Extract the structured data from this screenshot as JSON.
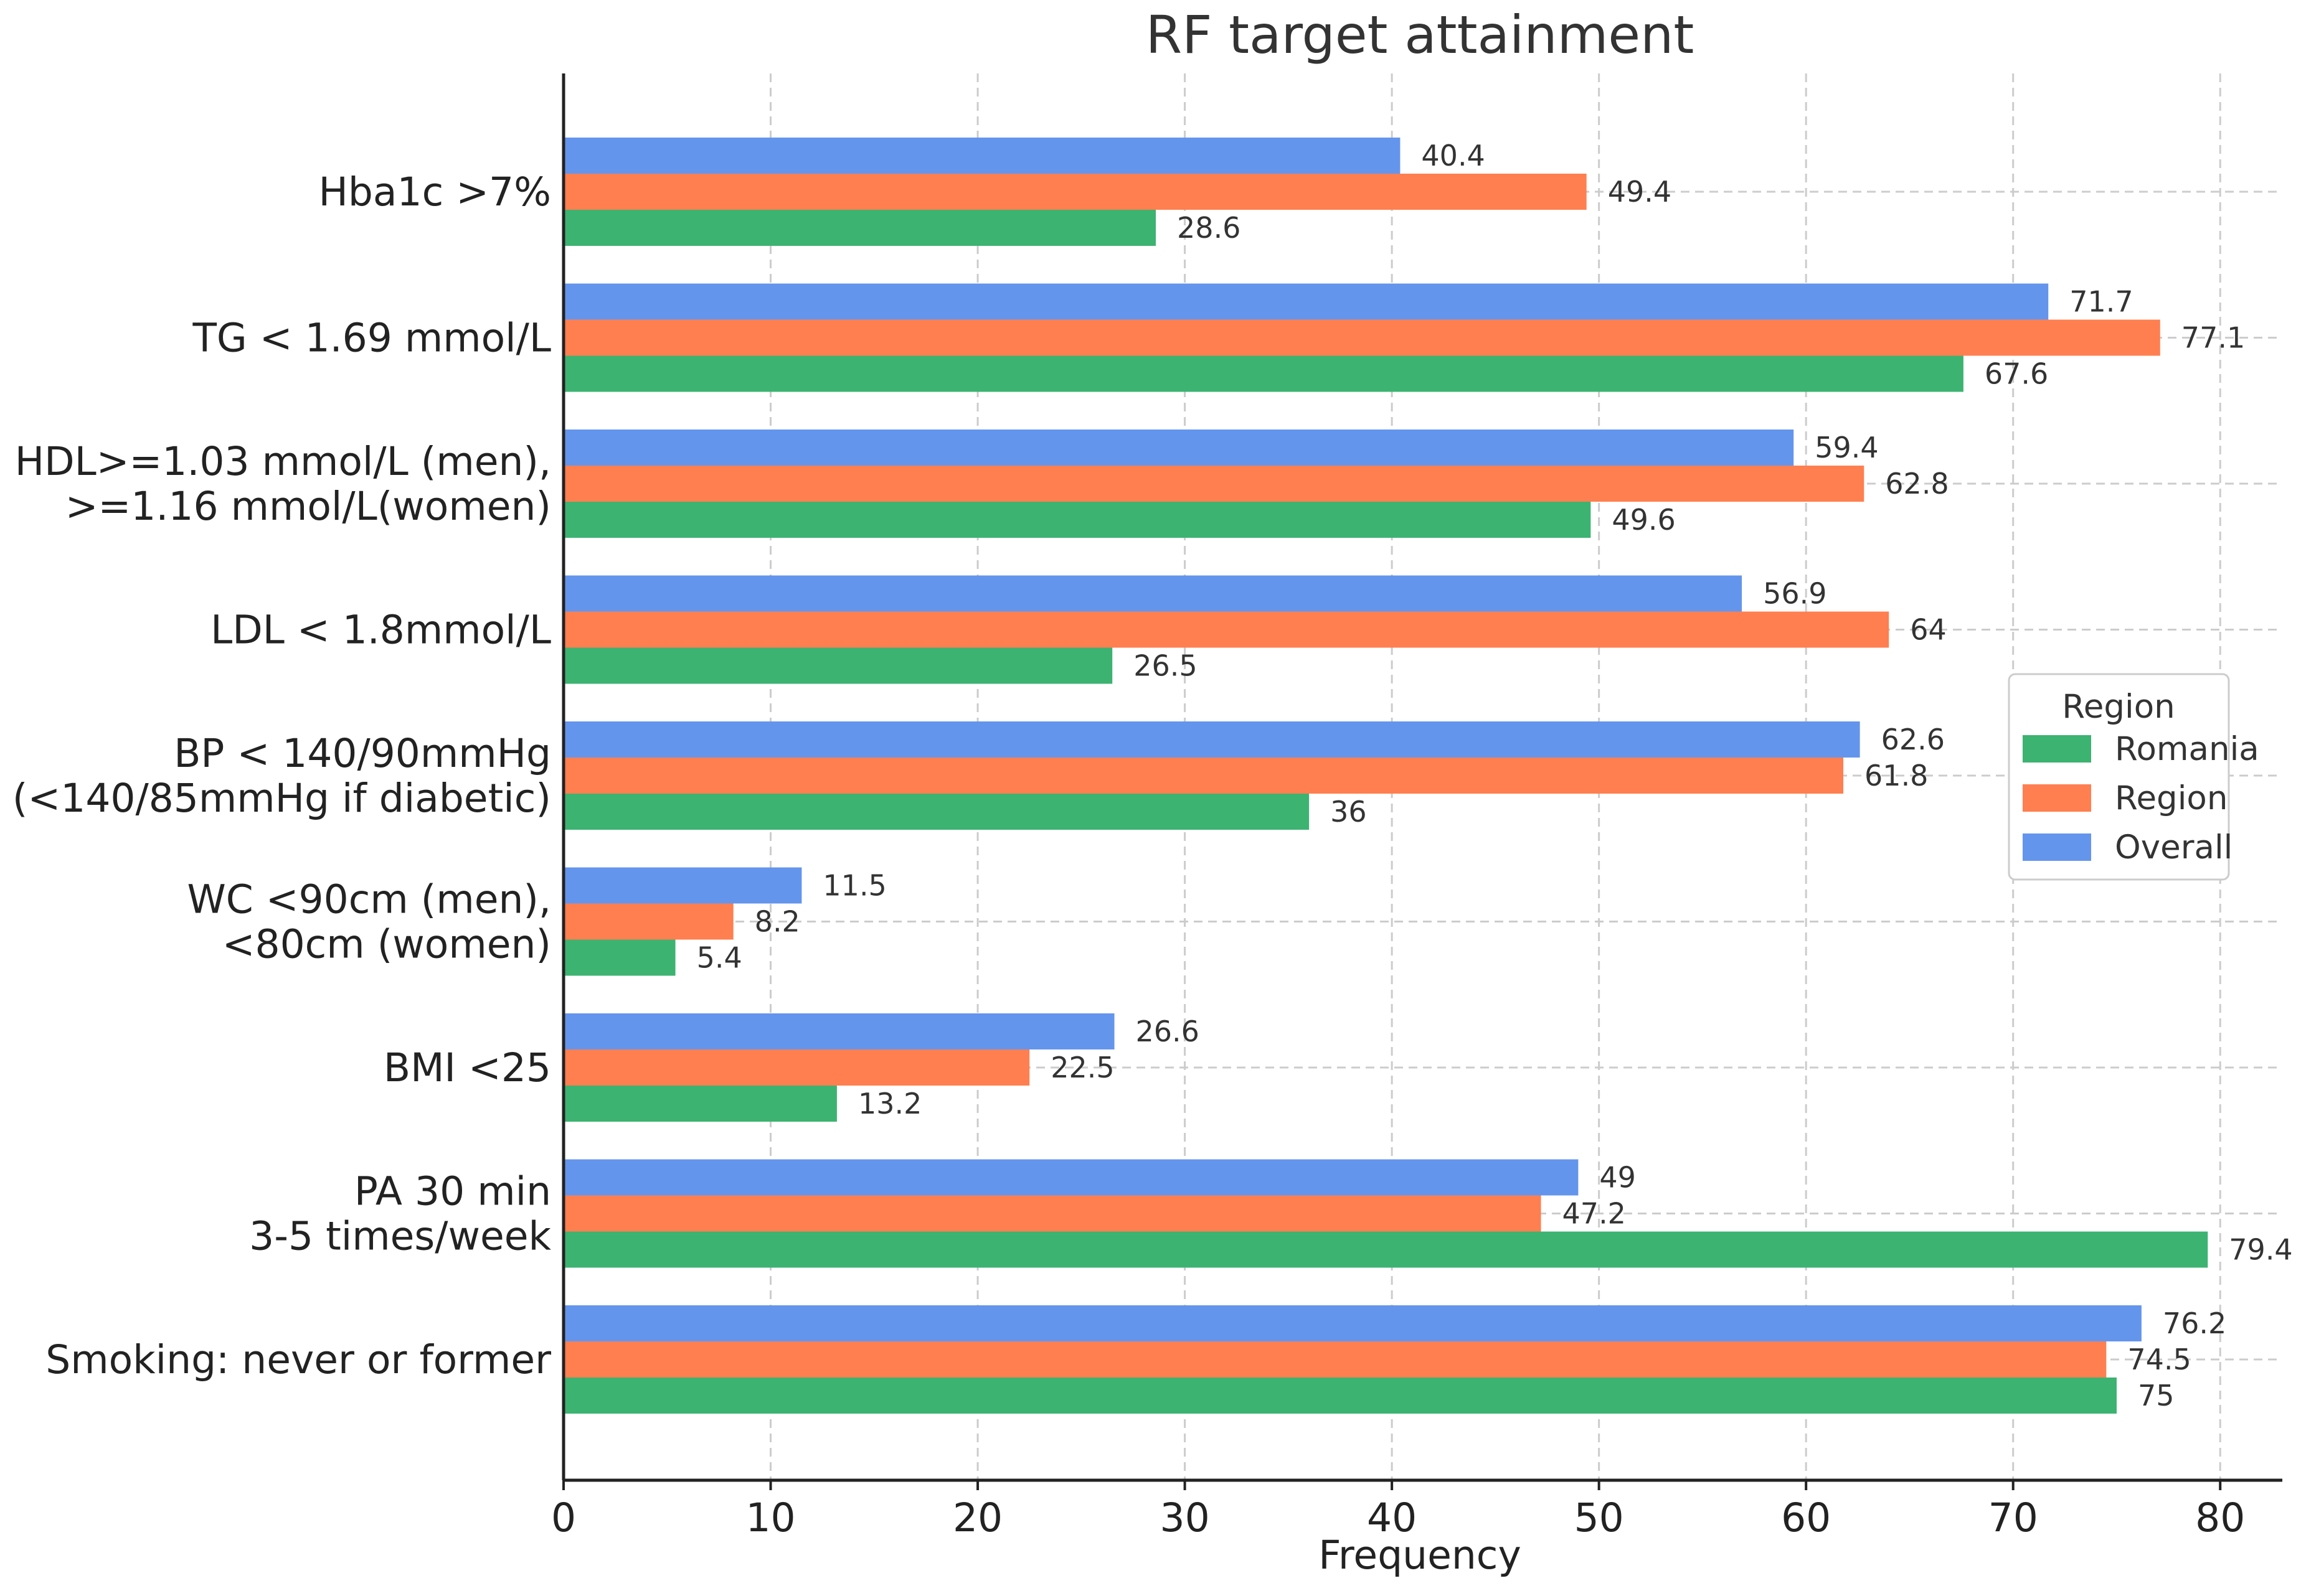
{
  "chart_data": {
    "type": "bar",
    "orientation": "horizontal",
    "title": "RF target attainment",
    "xlabel": "Frequency",
    "ylabel": "",
    "xlim": [
      0,
      83
    ],
    "xticks": [
      0,
      10,
      20,
      30,
      40,
      50,
      60,
      70,
      80
    ],
    "grid": true,
    "categories": [
      [
        "Hba1c >7%"
      ],
      [
        "TG < 1.69 mmol/L"
      ],
      [
        "HDL>=1.03 mmol/L (men),",
        ">=1.16 mmol/L(women)"
      ],
      [
        "LDL < 1.8mmol/L"
      ],
      [
        "BP < 140/90mmHg",
        "(<140/85mmHg if diabetic)"
      ],
      [
        "WC <90cm (men),",
        "<80cm (women)"
      ],
      [
        "BMI <25"
      ],
      [
        "PA 30 min",
        "3-5 times/week"
      ],
      [
        "Smoking: never or former"
      ]
    ],
    "series": [
      {
        "name": "Romania",
        "color": "#3cb371",
        "values": [
          28.6,
          67.6,
          49.6,
          26.5,
          36,
          5.4,
          13.2,
          79.4,
          75
        ],
        "labels": [
          "28.6",
          "67.6",
          "49.6",
          "26.5",
          "36",
          "5.4",
          "13.2",
          "79.4",
          "75"
        ]
      },
      {
        "name": "Region",
        "color": "#ff7f50",
        "values": [
          49.4,
          77.1,
          62.8,
          64,
          61.8,
          8.2,
          22.5,
          47.2,
          74.5
        ],
        "labels": [
          "49.4",
          "77.1",
          "62.8",
          "64",
          "61.8",
          "8.2",
          "22.5",
          "47.2",
          "74.5"
        ]
      },
      {
        "name": "Overall",
        "color": "#6495ed",
        "values": [
          40.4,
          71.7,
          59.4,
          56.9,
          62.6,
          11.5,
          26.6,
          49,
          76.2
        ],
        "labels": [
          "40.4",
          "71.7",
          "59.4",
          "56.9",
          "62.6",
          "11.5",
          "26.6",
          "49",
          "76.2"
        ]
      }
    ],
    "legend": {
      "title": "Region",
      "position": "center-right",
      "entries": [
        "Romania",
        "Region",
        "Overall"
      ]
    }
  }
}
